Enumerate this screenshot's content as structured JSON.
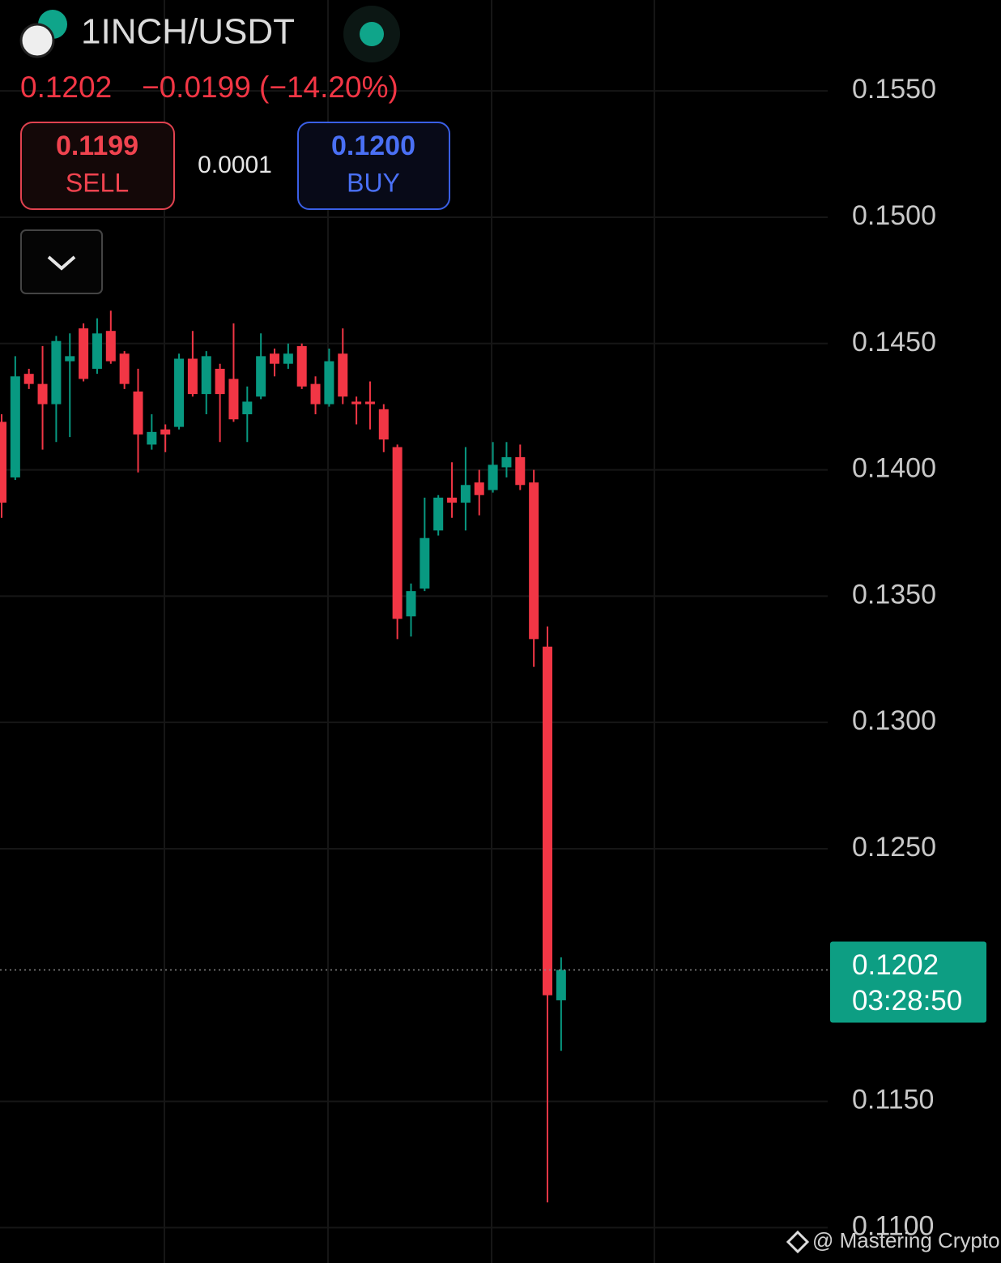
{
  "header": {
    "symbol": "1INCH/USDT",
    "change": "−0.0199 (−14.20%)"
  },
  "quote": {
    "sell": "0.1199",
    "sell_label": "SELL",
    "spread": "0.0001",
    "buy": "0.1200",
    "buy_label": "BUY"
  },
  "watermark": "@ Mastering Crypto",
  "chart_data": {
    "type": "candlestick",
    "open": [
      0.1419,
      0.1397,
      0.1438,
      0.1434,
      0.1426,
      0.1443,
      0.1456,
      0.144,
      0.1455,
      0.1446,
      0.1431,
      0.141,
      0.1416,
      0.1417,
      0.1444,
      0.143,
      0.144,
      0.1436,
      0.1422,
      0.1429,
      0.1446,
      0.1442,
      0.1449,
      0.1434,
      0.1426,
      0.1446,
      0.1427,
      0.1427,
      0.1424,
      0.1409,
      0.1342,
      0.1353,
      0.1376,
      0.1389,
      0.1387,
      0.1395,
      0.1392,
      0.1401,
      0.1405,
      0.1395,
      0.133,
      0.119
    ],
    "high": [
      0.1422,
      0.1445,
      0.144,
      0.1449,
      0.1453,
      0.1454,
      0.1458,
      0.146,
      0.1463,
      0.1447,
      0.144,
      0.1422,
      0.1418,
      0.1446,
      0.1455,
      0.1447,
      0.1442,
      0.1458,
      0.1433,
      0.1454,
      0.1448,
      0.145,
      0.145,
      0.1437,
      0.1448,
      0.1456,
      0.1429,
      0.1435,
      0.1426,
      0.141,
      0.1355,
      0.1389,
      0.139,
      0.1403,
      0.1409,
      0.14,
      0.1411,
      0.1411,
      0.141,
      0.14,
      0.1338,
      0.1207
    ],
    "low": [
      0.1381,
      0.1396,
      0.1432,
      0.1408,
      0.1411,
      0.1413,
      0.1435,
      0.1438,
      0.1442,
      0.1432,
      0.1399,
      0.1408,
      0.1407,
      0.1416,
      0.1429,
      0.1422,
      0.1411,
      0.1419,
      0.1411,
      0.1428,
      0.1437,
      0.144,
      0.1432,
      0.1422,
      0.1425,
      0.1426,
      0.1418,
      0.1416,
      0.1407,
      0.1333,
      0.1334,
      0.1352,
      0.1374,
      0.1381,
      0.1376,
      0.1382,
      0.1391,
      0.1397,
      0.1392,
      0.1322,
      0.111,
      0.117
    ],
    "close": [
      0.1387,
      0.1437,
      0.1434,
      0.1426,
      0.1451,
      0.1445,
      0.1436,
      0.1454,
      0.1443,
      0.1434,
      0.1414,
      0.1415,
      0.1414,
      0.1444,
      0.143,
      0.1445,
      0.143,
      0.142,
      0.1427,
      0.1445,
      0.1442,
      0.1446,
      0.1433,
      0.1426,
      0.1443,
      0.1429,
      0.1426,
      0.1426,
      0.1412,
      0.1341,
      0.1352,
      0.1373,
      0.1389,
      0.1387,
      0.1394,
      0.139,
      0.1402,
      0.1405,
      0.1394,
      0.1333,
      0.1192,
      0.1202
    ],
    "up_color": "#089981",
    "down_color": "#f23645",
    "ylim": [
      0.1086,
      0.1586
    ],
    "yticks": [
      {
        "value": 0.155,
        "label": "0.1550"
      },
      {
        "value": 0.15,
        "label": "0.1500"
      },
      {
        "value": 0.145,
        "label": "0.1450"
      },
      {
        "value": 0.14,
        "label": "0.1400"
      },
      {
        "value": 0.135,
        "label": "0.1350"
      },
      {
        "value": 0.13,
        "label": "0.1300"
      },
      {
        "value": 0.125,
        "label": "0.1250"
      },
      {
        "value": 0.115,
        "label": "0.1150"
      },
      {
        "value": 0.11,
        "label": "0.1100"
      }
    ],
    "grid": true,
    "last_price": 0.1202,
    "countdown": "03:28:50"
  }
}
